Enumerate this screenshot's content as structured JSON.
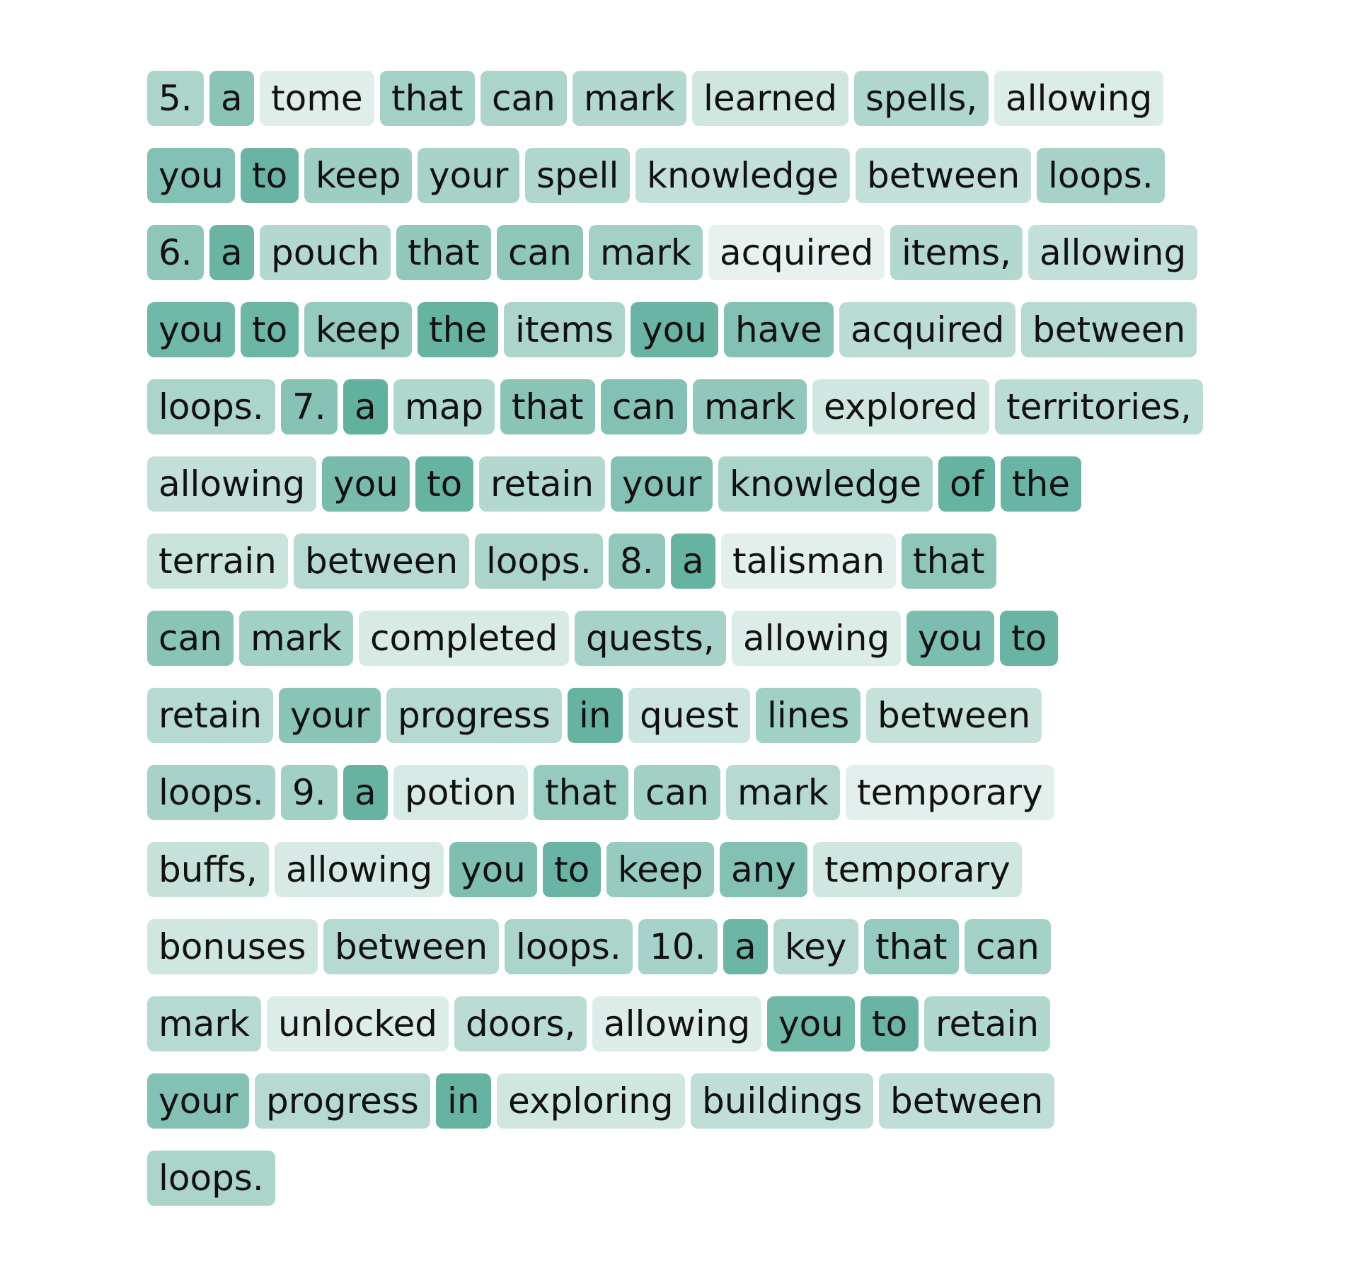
{
  "palette": {
    "low": "#eef5f3",
    "high": "#5aad9b",
    "text": "#111111"
  },
  "tokens": [
    {
      "text": "5.",
      "score": 0.45
    },
    {
      "text": "a",
      "score": 0.68
    },
    {
      "text": "tome",
      "score": 0.1
    },
    {
      "text": "that",
      "score": 0.5
    },
    {
      "text": "can",
      "score": 0.45
    },
    {
      "text": "mark",
      "score": 0.4
    },
    {
      "text": "learned",
      "score": 0.2
    },
    {
      "text": "spells,",
      "score": 0.42
    },
    {
      "text": "allowing",
      "score": 0.12
    },
    {
      "text": "you",
      "score": 0.72
    },
    {
      "text": "to",
      "score": 0.9
    },
    {
      "text": "keep",
      "score": 0.55
    },
    {
      "text": "your",
      "score": 0.48
    },
    {
      "text": "spell",
      "score": 0.42
    },
    {
      "text": "knowledge",
      "score": 0.3
    },
    {
      "text": "between",
      "score": 0.3
    },
    {
      "text": "loops.",
      "score": 0.48
    },
    {
      "text": "6.",
      "score": 0.65
    },
    {
      "text": "a",
      "score": 0.9
    },
    {
      "text": "pouch",
      "score": 0.4
    },
    {
      "text": "that",
      "score": 0.62
    },
    {
      "text": "can",
      "score": 0.65
    },
    {
      "text": "mark",
      "score": 0.5
    },
    {
      "text": "acquired",
      "score": 0.05
    },
    {
      "text": "items,",
      "score": 0.4
    },
    {
      "text": "allowing",
      "score": 0.3
    },
    {
      "text": "you",
      "score": 0.85
    },
    {
      "text": "to",
      "score": 0.88
    },
    {
      "text": "keep",
      "score": 0.6
    },
    {
      "text": "the",
      "score": 0.92
    },
    {
      "text": "items",
      "score": 0.45
    },
    {
      "text": "you",
      "score": 0.9
    },
    {
      "text": "have",
      "score": 0.72
    },
    {
      "text": "acquired",
      "score": 0.35
    },
    {
      "text": "between",
      "score": 0.38
    },
    {
      "text": "loops.",
      "score": 0.45
    },
    {
      "text": "7.",
      "score": 0.7
    },
    {
      "text": "a",
      "score": 0.95
    },
    {
      "text": "map",
      "score": 0.42
    },
    {
      "text": "that",
      "score": 0.68
    },
    {
      "text": "can",
      "score": 0.72
    },
    {
      "text": "mark",
      "score": 0.62
    },
    {
      "text": "explored",
      "score": 0.2
    },
    {
      "text": "territories,",
      "score": 0.35
    },
    {
      "text": "allowing",
      "score": 0.3
    },
    {
      "text": "you",
      "score": 0.8
    },
    {
      "text": "to",
      "score": 0.92
    },
    {
      "text": "retain",
      "score": 0.4
    },
    {
      "text": "your",
      "score": 0.72
    },
    {
      "text": "knowledge",
      "score": 0.45
    },
    {
      "text": "of",
      "score": 0.92
    },
    {
      "text": "the",
      "score": 0.9
    },
    {
      "text": "terrain",
      "score": 0.25
    },
    {
      "text": "between",
      "score": 0.38
    },
    {
      "text": "loops.",
      "score": 0.45
    },
    {
      "text": "8.",
      "score": 0.62
    },
    {
      "text": "a",
      "score": 0.92
    },
    {
      "text": "talisman",
      "score": 0.08
    },
    {
      "text": "that",
      "score": 0.65
    },
    {
      "text": "can",
      "score": 0.68
    },
    {
      "text": "mark",
      "score": 0.52
    },
    {
      "text": "completed",
      "score": 0.15
    },
    {
      "text": "quests,",
      "score": 0.48
    },
    {
      "text": "allowing",
      "score": 0.12
    },
    {
      "text": "you",
      "score": 0.78
    },
    {
      "text": "to",
      "score": 0.9
    },
    {
      "text": "retain",
      "score": 0.38
    },
    {
      "text": "your",
      "score": 0.68
    },
    {
      "text": "progress",
      "score": 0.38
    },
    {
      "text": "in",
      "score": 0.92
    },
    {
      "text": "quest",
      "score": 0.22
    },
    {
      "text": "lines",
      "score": 0.52
    },
    {
      "text": "between",
      "score": 0.28
    },
    {
      "text": "loops.",
      "score": 0.48
    },
    {
      "text": "9.",
      "score": 0.52
    },
    {
      "text": "a",
      "score": 0.92
    },
    {
      "text": "potion",
      "score": 0.15
    },
    {
      "text": "that",
      "score": 0.6
    },
    {
      "text": "can",
      "score": 0.52
    },
    {
      "text": "mark",
      "score": 0.38
    },
    {
      "text": "temporary",
      "score": 0.08
    },
    {
      "text": "buffs,",
      "score": 0.28
    },
    {
      "text": "allowing",
      "score": 0.15
    },
    {
      "text": "you",
      "score": 0.75
    },
    {
      "text": "to",
      "score": 0.9
    },
    {
      "text": "keep",
      "score": 0.58
    },
    {
      "text": "any",
      "score": 0.72
    },
    {
      "text": "temporary",
      "score": 0.2
    },
    {
      "text": "bonuses",
      "score": 0.2
    },
    {
      "text": "between",
      "score": 0.38
    },
    {
      "text": "loops.",
      "score": 0.45
    },
    {
      "text": "10.",
      "score": 0.48
    },
    {
      "text": "a",
      "score": 0.88
    },
    {
      "text": "key",
      "score": 0.38
    },
    {
      "text": "that",
      "score": 0.6
    },
    {
      "text": "can",
      "score": 0.5
    },
    {
      "text": "mark",
      "score": 0.38
    },
    {
      "text": "unlocked",
      "score": 0.12
    },
    {
      "text": "doors,",
      "score": 0.35
    },
    {
      "text": "allowing",
      "score": 0.12
    },
    {
      "text": "you",
      "score": 0.85
    },
    {
      "text": "to",
      "score": 0.9
    },
    {
      "text": "retain",
      "score": 0.42
    },
    {
      "text": "your",
      "score": 0.72
    },
    {
      "text": "progress",
      "score": 0.38
    },
    {
      "text": "in",
      "score": 0.92
    },
    {
      "text": "exploring",
      "score": 0.2
    },
    {
      "text": "buildings",
      "score": 0.32
    },
    {
      "text": "between",
      "score": 0.32
    },
    {
      "text": "loops.",
      "score": 0.45
    }
  ]
}
